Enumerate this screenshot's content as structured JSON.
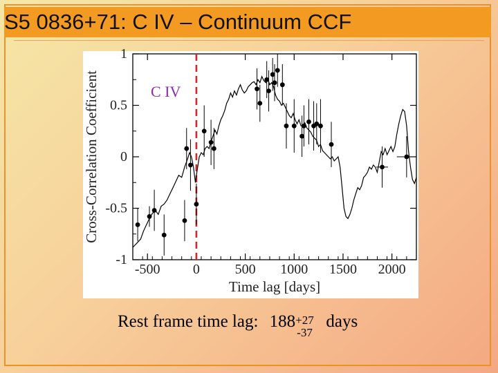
{
  "slide": {
    "title": "S5 0836+71:  C IV – Continuum  CCF",
    "caption": {
      "label": "Rest frame time lag:",
      "value": "188",
      "plus_error": "+27",
      "minus_error": "-37",
      "unit": "days"
    }
  },
  "chart_data": {
    "type": "line",
    "xlabel": "Time lag [days]",
    "ylabel": "Cross-Correlation Coefficient",
    "annotation": "C IV",
    "xlim": [
      -650,
      2250
    ],
    "ylim": [
      -1,
      1
    ],
    "xticks": [
      -500,
      0,
      500,
      1000,
      1500,
      2000
    ],
    "yticks": [
      1,
      0.5,
      0,
      -0.5,
      -1
    ],
    "ytick_labels": [
      "1",
      "0.5",
      "0",
      "-0.5",
      "-1"
    ],
    "lag_marker": {
      "x": 0,
      "color": "#d9262c",
      "style": "dashed"
    },
    "series": [
      {
        "kind": "ccf_line",
        "color": "#000000",
        "x": [
          -650,
          -610,
          -570,
          -540,
          -510,
          -480,
          -450,
          -420,
          -390,
          -360,
          -330,
          -300,
          -270,
          -240,
          -210,
          -180,
          -150,
          -120,
          -90,
          -70,
          -50,
          -30,
          -10,
          10,
          30,
          50,
          70,
          90,
          110,
          130,
          150,
          170,
          190,
          210,
          230,
          250,
          270,
          290,
          310,
          330,
          350,
          370,
          390,
          410,
          430,
          450,
          470,
          490,
          510,
          530,
          550,
          570,
          590,
          610,
          630,
          650,
          670,
          690,
          710,
          730,
          750,
          770,
          790,
          810,
          830,
          850,
          870,
          890,
          910,
          930,
          950,
          970,
          990,
          1010,
          1030,
          1050,
          1070,
          1090,
          1110,
          1130,
          1150,
          1170,
          1190,
          1210,
          1230,
          1250,
          1270,
          1290,
          1310,
          1330,
          1350,
          1370,
          1390,
          1410,
          1430,
          1450,
          1470,
          1490,
          1510,
          1530,
          1550,
          1570,
          1590,
          1610,
          1630,
          1650,
          1670,
          1690,
          1710,
          1730,
          1750,
          1770,
          1790,
          1810,
          1830,
          1850,
          1870,
          1890,
          1910,
          1930,
          1950,
          1970,
          1990,
          2010,
          2030,
          2050,
          2070,
          2090,
          2110,
          2130,
          2150,
          2170,
          2190,
          2210,
          2230,
          2250
        ],
        "y": [
          -0.88,
          -0.84,
          -0.8,
          -0.72,
          -0.66,
          -0.6,
          -0.55,
          -0.52,
          -0.56,
          -0.48,
          -0.46,
          -0.42,
          -0.36,
          -0.3,
          -0.24,
          -0.18,
          -0.2,
          -0.1,
          -0.02,
          0.04,
          0.0,
          -0.1,
          -0.25,
          -0.12,
          0.0,
          0.04,
          0.02,
          0.08,
          0.1,
          0.08,
          0.15,
          0.2,
          0.26,
          0.22,
          0.3,
          0.36,
          0.4,
          0.45,
          0.52,
          0.56,
          0.62,
          0.58,
          0.64,
          0.6,
          0.66,
          0.7,
          0.65,
          0.62,
          0.64,
          0.68,
          0.7,
          0.72,
          0.73,
          0.7,
          0.75,
          0.72,
          0.78,
          0.74,
          0.72,
          0.76,
          0.7,
          0.72,
          0.68,
          0.6,
          0.56,
          0.54,
          0.5,
          0.52,
          0.48,
          0.44,
          0.4,
          0.38,
          0.42,
          0.36,
          0.32,
          0.36,
          0.3,
          0.3,
          0.33,
          0.28,
          0.26,
          0.24,
          0.2,
          0.18,
          0.16,
          0.1,
          0.12,
          0.06,
          0.04,
          0.02,
          0.0,
          -0.02,
          0.0,
          -0.04,
          -0.02,
          0.0,
          -0.1,
          -0.3,
          -0.5,
          -0.58,
          -0.6,
          -0.56,
          -0.5,
          -0.42,
          -0.36,
          -0.3,
          -0.32,
          -0.28,
          -0.2,
          -0.18,
          -0.15,
          -0.1,
          -0.12,
          -0.08,
          -0.1,
          -0.15,
          -0.05,
          0.05,
          0.02,
          0.08,
          0.02,
          0.06,
          0.1,
          0.05,
          0.1,
          0.22,
          0.32,
          0.4,
          0.46,
          0.44,
          0.3,
          0.05,
          -0.1,
          -0.22,
          -0.26,
          -0.2
        ]
      },
      {
        "kind": "ccf_points",
        "color": "#000000",
        "x": [
          -600,
          -480,
          -430,
          -330,
          -120,
          -100,
          -60,
          0,
          80,
          150,
          180,
          620,
          650,
          720,
          740,
          780,
          800,
          830,
          880,
          920,
          1000,
          1080,
          1100,
          1150,
          1200,
          1230,
          1270,
          1380,
          1900,
          2150
        ],
        "y": [
          -0.66,
          -0.58,
          -0.52,
          -0.76,
          -0.62,
          0.08,
          -0.08,
          -0.46,
          0.25,
          0.14,
          0.08,
          0.66,
          0.52,
          0.75,
          0.64,
          0.8,
          0.72,
          0.84,
          0.7,
          0.3,
          0.3,
          0.2,
          0.3,
          0.34,
          0.3,
          0.32,
          0.3,
          0.12,
          -0.1,
          0.0
        ],
        "yerr": [
          0.16,
          0.1,
          0.2,
          0.2,
          0.2,
          0.2,
          0.25,
          0.2,
          0.25,
          0.22,
          0.2,
          0.2,
          0.18,
          0.18,
          0.2,
          0.16,
          0.18,
          0.16,
          0.2,
          0.22,
          0.26,
          0.2,
          0.2,
          0.22,
          0.24,
          0.2,
          0.26,
          0.22,
          0.2,
          0.2
        ],
        "xerr": [
          0,
          0,
          0,
          0,
          0,
          0,
          0,
          0,
          0,
          0,
          0,
          0,
          0,
          0,
          0,
          0,
          0,
          0,
          0,
          0,
          0,
          0,
          0,
          0,
          0,
          0,
          0,
          0,
          60,
          100
        ]
      }
    ]
  }
}
